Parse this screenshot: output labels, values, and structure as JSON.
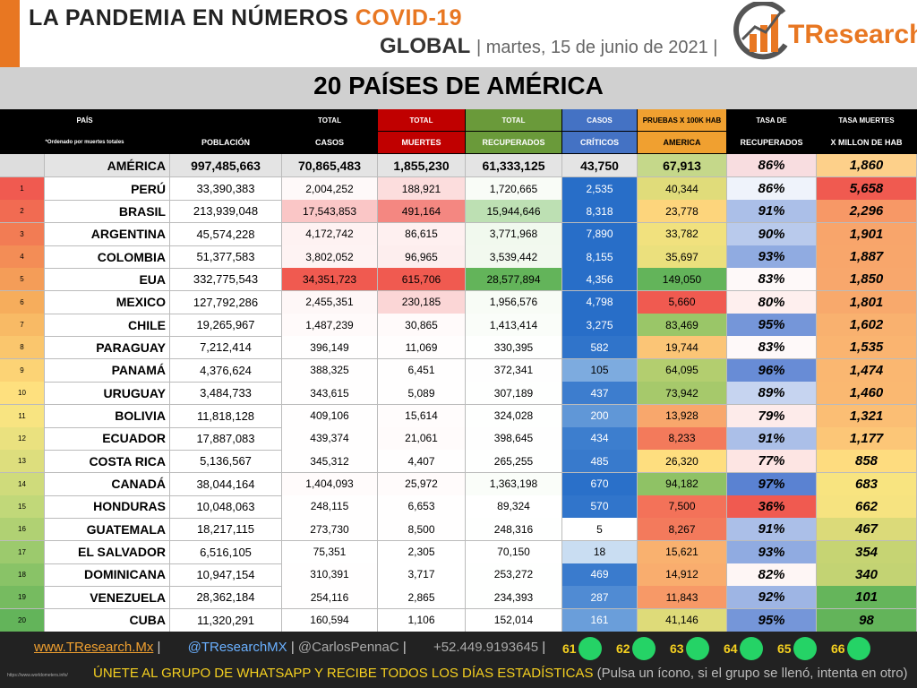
{
  "header": {
    "title": "LA PANDEMIA EN NÚMEROS",
    "title_highlight": "COVID-19",
    "scope": "GLOBAL",
    "date": "| martes, 15 de junio de 2021 |",
    "logo": "TResearch"
  },
  "section_title": "20 PAÍSES DE AMÉRICA",
  "table": {
    "header_top": [
      "PAÍS",
      "TOTAL",
      "TOTAL",
      "TOTAL",
      "CASOS",
      "PRUEBAS X 100K HAB",
      "TASA DE",
      "TASA MUERTES"
    ],
    "header_bottom": [
      "*Ordenado por muertes totales",
      "POBLACIÓN",
      "CASOS",
      "MUERTES",
      "RECUPERADOS",
      "CRÍTICOS",
      "AMERICA",
      "RECUPERADOS",
      "X MILLON DE HAB"
    ],
    "total": [
      "AMÉRICA",
      "997,485,663",
      "70,865,483",
      "1,855,230",
      "61,333,125",
      "43,750",
      "67,913",
      "86%",
      "1,860"
    ],
    "rows": [
      [
        "1",
        "PERÚ",
        "33,390,383",
        "2,004,252",
        "188,921",
        "1,720,665",
        "2,535",
        "40,344",
        "86%",
        "5,658"
      ],
      [
        "2",
        "BRASIL",
        "213,939,048",
        "17,543,853",
        "491,164",
        "15,944,646",
        "8,318",
        "23,778",
        "91%",
        "2,296"
      ],
      [
        "3",
        "ARGENTINA",
        "45,574,228",
        "4,172,742",
        "86,615",
        "3,771,968",
        "7,890",
        "33,782",
        "90%",
        "1,901"
      ],
      [
        "4",
        "COLOMBIA",
        "51,377,583",
        "3,802,052",
        "96,965",
        "3,539,442",
        "8,155",
        "35,697",
        "93%",
        "1,887"
      ],
      [
        "5",
        "EUA",
        "332,775,543",
        "34,351,723",
        "615,706",
        "28,577,894",
        "4,356",
        "149,050",
        "83%",
        "1,850"
      ],
      [
        "6",
        "MEXICO",
        "127,792,286",
        "2,455,351",
        "230,185",
        "1,956,576",
        "4,798",
        "5,660",
        "80%",
        "1,801"
      ],
      [
        "7",
        "CHILE",
        "19,265,967",
        "1,487,239",
        "30,865",
        "1,413,414",
        "3,275",
        "83,469",
        "95%",
        "1,602"
      ],
      [
        "8",
        "PARAGUAY",
        "7,212,414",
        "396,149",
        "11,069",
        "330,395",
        "582",
        "19,744",
        "83%",
        "1,535"
      ],
      [
        "9",
        "PANAMÁ",
        "4,376,624",
        "388,325",
        "6,451",
        "372,341",
        "105",
        "64,095",
        "96%",
        "1,474"
      ],
      [
        "10",
        "URUGUAY",
        "3,484,733",
        "343,615",
        "5,089",
        "307,189",
        "437",
        "73,942",
        "89%",
        "1,460"
      ],
      [
        "11",
        "BOLIVIA",
        "11,818,128",
        "409,106",
        "15,614",
        "324,028",
        "200",
        "13,928",
        "79%",
        "1,321"
      ],
      [
        "12",
        "ECUADOR",
        "17,887,083",
        "439,374",
        "21,061",
        "398,645",
        "434",
        "8,233",
        "91%",
        "1,177"
      ],
      [
        "13",
        "COSTA RICA",
        "5,136,567",
        "345,312",
        "4,407",
        "265,255",
        "485",
        "26,320",
        "77%",
        "858"
      ],
      [
        "14",
        "CANADÁ",
        "38,044,164",
        "1,404,093",
        "25,972",
        "1,363,198",
        "670",
        "94,182",
        "97%",
        "683"
      ],
      [
        "15",
        "HONDURAS",
        "10,048,063",
        "248,115",
        "6,653",
        "89,324",
        "570",
        "7,500",
        "36%",
        "662"
      ],
      [
        "16",
        "GUATEMALA",
        "18,217,115",
        "273,730",
        "8,500",
        "248,316",
        "5",
        "8,267",
        "91%",
        "467"
      ],
      [
        "17",
        "EL SALVADOR",
        "6,516,105",
        "75,351",
        "2,305",
        "70,150",
        "18",
        "15,621",
        "93%",
        "354"
      ],
      [
        "18",
        "DOMINICANA",
        "10,947,154",
        "310,391",
        "3,717",
        "253,272",
        "469",
        "14,912",
        "82%",
        "340"
      ],
      [
        "19",
        "VENEZUELA",
        "28,362,184",
        "254,116",
        "2,865",
        "234,393",
        "287",
        "11,843",
        "92%",
        "101"
      ],
      [
        "20",
        "CUBA",
        "11,320,291",
        "160,594",
        "1,106",
        "152,014",
        "161",
        "41,146",
        "95%",
        "98"
      ]
    ]
  },
  "footer": {
    "website": "www.TResearch.Mx",
    "twitter": "@TResearchMX",
    "twitter2": "@CarlosPennaC",
    "phone": "+52.449.9193645",
    "groups": [
      "61",
      "62",
      "63",
      "64",
      "65",
      "66"
    ],
    "source": "https://www.worldometers.info/",
    "cta": "ÚNETE AL GRUPO DE WHATSAPP Y RECIBE TODOS LOS DÍAS ESTADÍSTICAS",
    "cta_note": "(Pulsa un ícono, si el grupo se llenó, intenta en otro)"
  }
}
